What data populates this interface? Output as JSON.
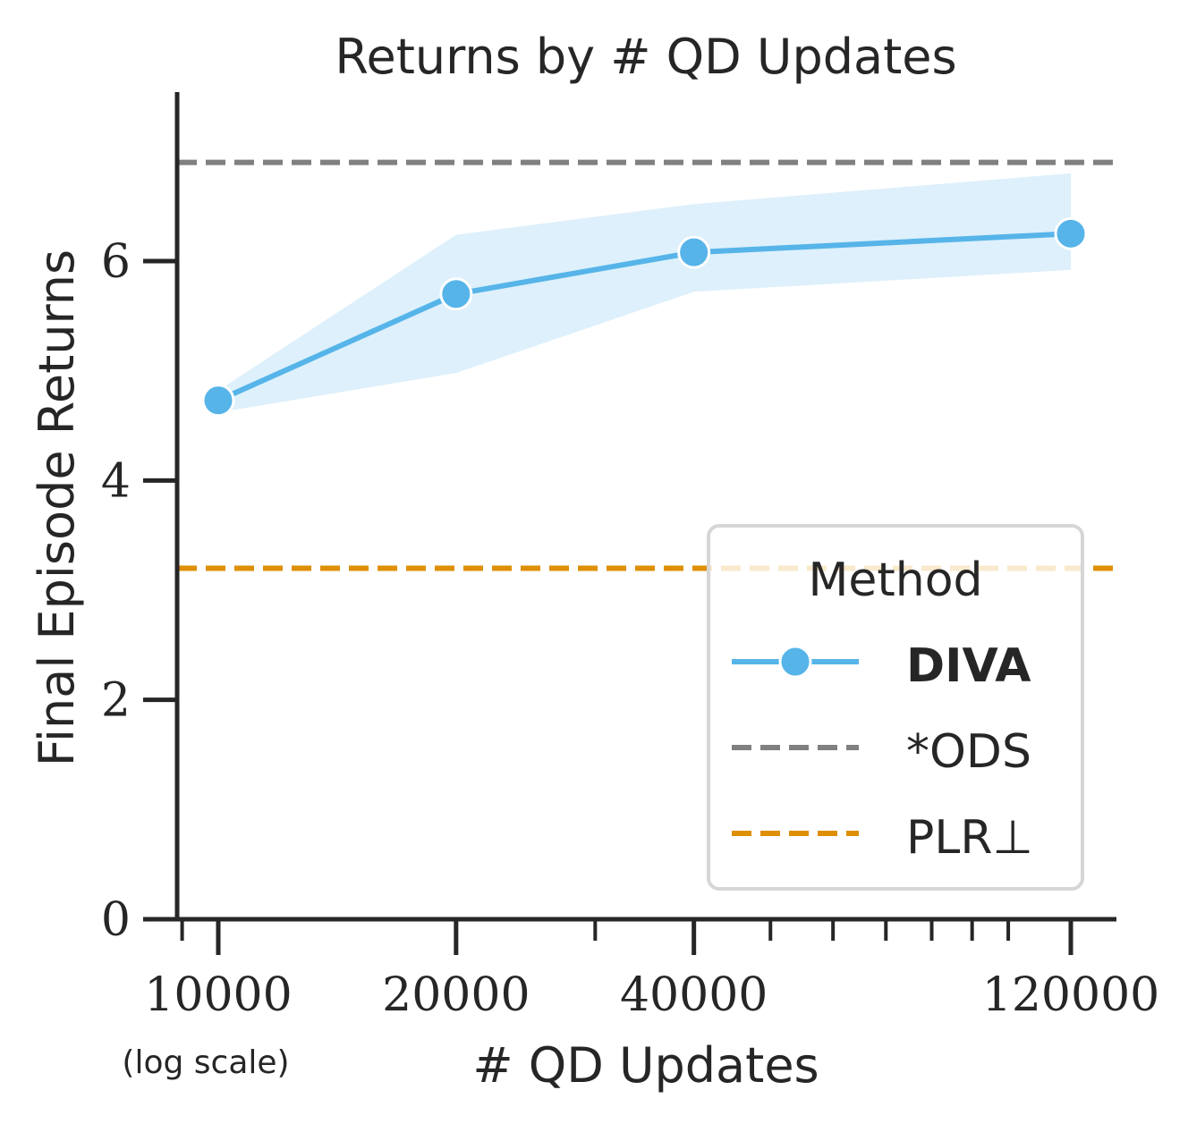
{
  "chart_data": {
    "type": "line",
    "title": "Returns by # QD Updates",
    "xlabel": "# QD Updates",
    "xlabel_note": "(log scale)",
    "ylabel": "Final Episode Returns",
    "x_scale": "log",
    "xlim": [
      9000,
      130000
    ],
    "ylim": [
      0,
      7.5
    ],
    "x_ticks": [
      10000,
      20000,
      40000,
      120000
    ],
    "x_tick_labels": [
      "10000",
      "20000",
      "40000",
      "120000"
    ],
    "y_ticks": [
      0,
      2,
      4,
      6
    ],
    "y_tick_labels": [
      "0",
      "2",
      "4",
      "6"
    ],
    "grid": false,
    "legend": {
      "title": "Method",
      "position": "lower-right",
      "entries": [
        {
          "label": "DIVA",
          "style": "solid-marker",
          "color": "#56b4e9",
          "bold": true
        },
        {
          "label": "*ODS",
          "style": "dashed",
          "color": "#808080",
          "bold": false
        },
        {
          "label": "PLR⊥",
          "style": "dashed",
          "color": "#de8f05",
          "bold": false
        }
      ]
    },
    "series": [
      {
        "name": "DIVA",
        "color": "#56b4e9",
        "x": [
          10000,
          20000,
          40000,
          120000
        ],
        "y": [
          4.73,
          5.7,
          6.08,
          6.25
        ],
        "y_lower": [
          4.62,
          4.98,
          5.72,
          5.92
        ],
        "y_upper": [
          4.82,
          6.24,
          6.52,
          6.8
        ]
      }
    ],
    "reference_lines": [
      {
        "name": "*ODS",
        "y": 6.9,
        "color": "#808080",
        "style": "dashed"
      },
      {
        "name": "PLR⊥",
        "y": 3.2,
        "color": "#de8f05",
        "style": "dashed"
      }
    ]
  }
}
